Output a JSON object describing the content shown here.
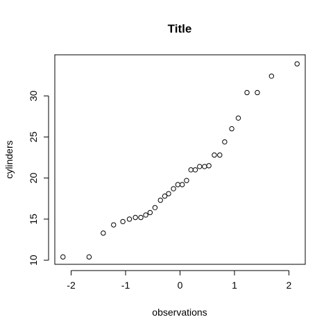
{
  "chart_data": {
    "type": "scatter",
    "title": "Title",
    "xlabel": "observations",
    "ylabel": "cylinders",
    "xlim": [
      -2.3,
      2.3
    ],
    "ylim": [
      9.5,
      35.0
    ],
    "xticks": [
      -2,
      -1,
      0,
      1,
      2
    ],
    "xtick_labels": [
      "-2",
      "-1",
      "0",
      "1",
      "2"
    ],
    "yticks": [
      10,
      15,
      20,
      25,
      30
    ],
    "ytick_labels": [
      "10",
      "15",
      "20",
      "25",
      "30"
    ],
    "grid": false,
    "legend": "none",
    "points": [
      {
        "x": -2.15,
        "y": 10.4
      },
      {
        "x": -1.67,
        "y": 10.4
      },
      {
        "x": -1.41,
        "y": 13.3
      },
      {
        "x": -1.22,
        "y": 14.3
      },
      {
        "x": -1.05,
        "y": 14.7
      },
      {
        "x": -0.93,
        "y": 15.0
      },
      {
        "x": -0.82,
        "y": 15.2
      },
      {
        "x": -0.72,
        "y": 15.2
      },
      {
        "x": -0.63,
        "y": 15.5
      },
      {
        "x": -0.55,
        "y": 15.8
      },
      {
        "x": -0.46,
        "y": 16.4
      },
      {
        "x": -0.36,
        "y": 17.3
      },
      {
        "x": -0.28,
        "y": 17.8
      },
      {
        "x": -0.21,
        "y": 18.1
      },
      {
        "x": -0.12,
        "y": 18.7
      },
      {
        "x": -0.04,
        "y": 19.2
      },
      {
        "x": 0.04,
        "y": 19.2
      },
      {
        "x": 0.12,
        "y": 19.7
      },
      {
        "x": 0.2,
        "y": 21.0
      },
      {
        "x": 0.28,
        "y": 21.0
      },
      {
        "x": 0.36,
        "y": 21.4
      },
      {
        "x": 0.45,
        "y": 21.4
      },
      {
        "x": 0.53,
        "y": 21.5
      },
      {
        "x": 0.63,
        "y": 22.8
      },
      {
        "x": 0.73,
        "y": 22.8
      },
      {
        "x": 0.82,
        "y": 24.4
      },
      {
        "x": 0.95,
        "y": 26.0
      },
      {
        "x": 1.07,
        "y": 27.3
      },
      {
        "x": 1.23,
        "y": 30.4
      },
      {
        "x": 1.42,
        "y": 30.4
      },
      {
        "x": 1.68,
        "y": 32.4
      },
      {
        "x": 2.15,
        "y": 33.9
      }
    ]
  }
}
